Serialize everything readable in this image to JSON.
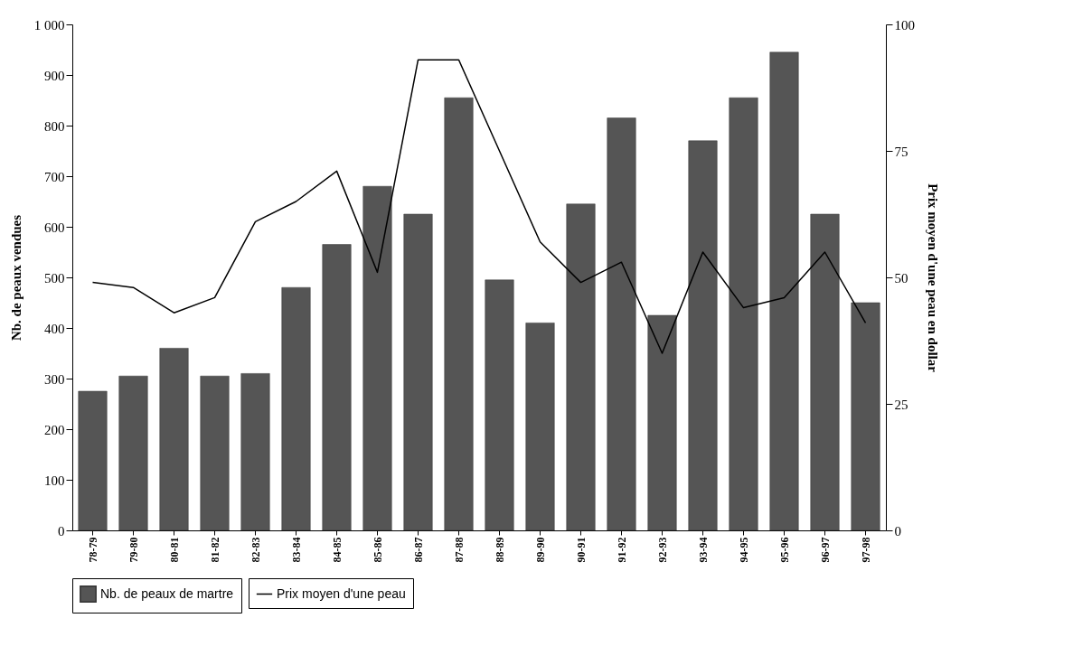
{
  "chart_data": {
    "type": "bar",
    "ylabel": "Nb. de peaux vendues",
    "y2label": "Prix moyen d'une peau en dollar",
    "categories": [
      "78-79",
      "79-80",
      "80-81",
      "81-82",
      "82-83",
      "83-84",
      "84-85",
      "85-86",
      "86-87",
      "87-88",
      "88-89",
      "89-90",
      "90-91",
      "91-92",
      "92-93",
      "93-94",
      "94-95",
      "95-96",
      "96-97",
      "97-98"
    ],
    "series": [
      {
        "name": "Nb. de peaux de martre",
        "color": "#555555",
        "values": [
          275,
          305,
          360,
          305,
          310,
          480,
          565,
          680,
          625,
          855,
          495,
          410,
          645,
          815,
          425,
          770,
          855,
          945,
          625,
          450
        ]
      },
      {
        "name": "Prix moyen d'une peau",
        "type": "line",
        "axis": "y2",
        "color": "#000000",
        "values": [
          49,
          48,
          43,
          46,
          61,
          65,
          71,
          51,
          93,
          93,
          75,
          57,
          49,
          53,
          35,
          55,
          44,
          46,
          55,
          41
        ]
      }
    ],
    "ylim": [
      0,
      1000
    ],
    "yticks": [
      0,
      100,
      200,
      300,
      400,
      500,
      600,
      700,
      800,
      900,
      {
        "value": 1000,
        "label": "1 000"
      }
    ],
    "y2lim": [
      0,
      100
    ],
    "y2ticks": [
      0,
      25,
      50,
      75,
      100
    ],
    "grid": false,
    "legend": "bottom"
  }
}
